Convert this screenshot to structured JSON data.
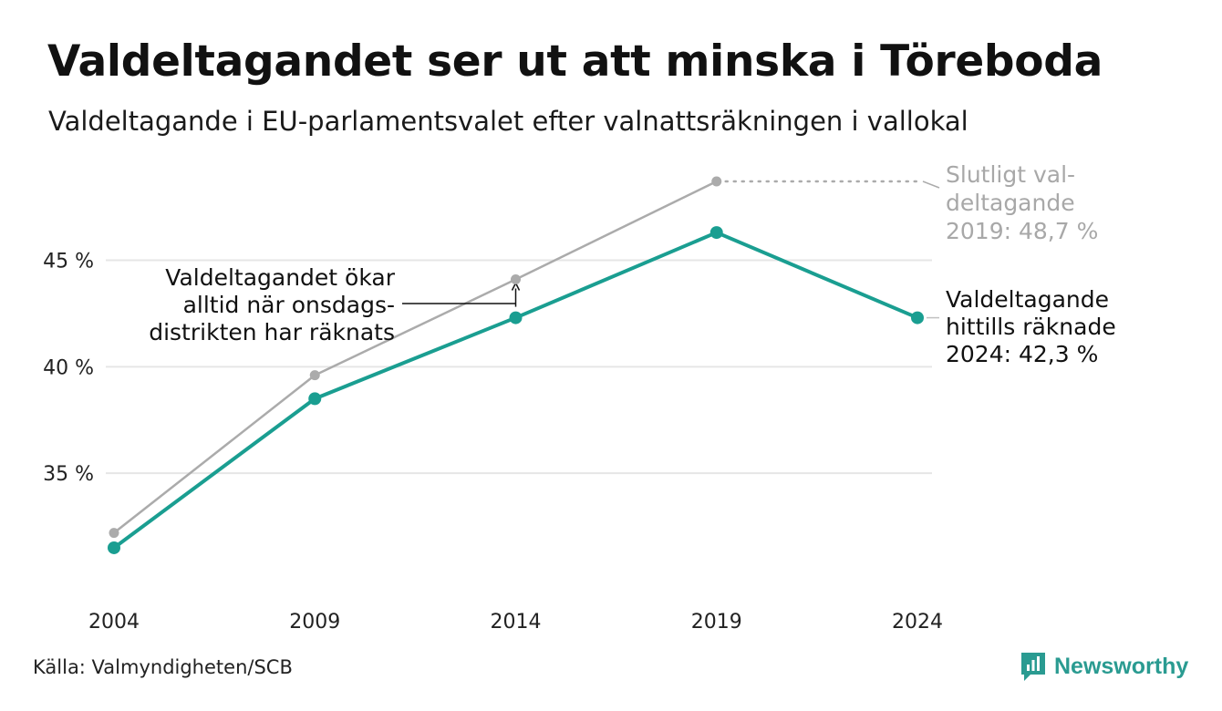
{
  "title": "Valdeltagandet ser ut att minska i Töreboda",
  "subtitle": "Valdeltagande i EU-parlamentsvalet efter valnattsräkningen i vallokal",
  "source": "Källa: Valmyndigheten/SCB",
  "brand": {
    "name": "Newsworthy",
    "icon": "newsworthy-logo-icon"
  },
  "colors": {
    "preliminary": "#1a9e91",
    "final": "#ababab",
    "grid": "#e6e6e6"
  },
  "annotations": {
    "final": [
      "Slutligt val-",
      "deltagande",
      "2019: 48,7 %"
    ],
    "preliminary": [
      "Valdeltagande",
      "hittills räknade",
      "2024: 42,3 %"
    ],
    "wednesday": [
      "Valdeltagandet ökar",
      "alltid när onsdags-",
      "distrikten har räknats"
    ]
  },
  "chart_data": {
    "type": "line",
    "title": "Valdeltagandet ser ut att minska i Töreboda",
    "subtitle": "Valdeltagande i EU-parlamentsvalet efter valnattsräkningen i vallokal",
    "x": [
      "2004",
      "2009",
      "2014",
      "2019",
      "2024"
    ],
    "ylim": [
      30,
      49
    ],
    "yticks": [
      35,
      40,
      45
    ],
    "ytick_labels": [
      "35 %",
      "40 %",
      "45 %"
    ],
    "grid": "horizontal",
    "legend": "direct labels",
    "series": [
      {
        "values": [
          32.2,
          39.6,
          44.1,
          48.7,
          null
        ]
      },
      {
        "values": [
          31.5,
          38.5,
          42.3,
          46.3,
          42.3
        ]
      }
    ]
  }
}
